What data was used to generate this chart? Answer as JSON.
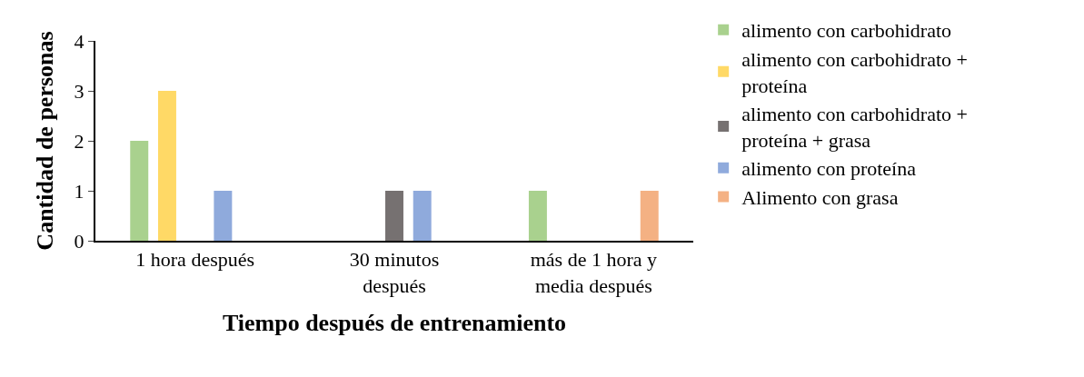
{
  "chart_data": {
    "type": "bar",
    "xlabel": "Tiempo después de entrenamiento",
    "ylabel": "Cantidad de personas",
    "categories": [
      "1 hora después",
      "30 minutos después",
      "más de 1 hora y media después"
    ],
    "series": [
      {
        "name": "alimento con carbohidrato",
        "color": "#a9d18e",
        "values": [
          2,
          0,
          1
        ]
      },
      {
        "name": "alimento con carbohidrato + proteína",
        "color": "#ffd966",
        "values": [
          3,
          0,
          0
        ]
      },
      {
        "name": "alimento con carbohidrato + proteína + grasa",
        "color": "#767171",
        "values": [
          0,
          1,
          0
        ]
      },
      {
        "name": "alimento con proteína",
        "color": "#8faadc",
        "values": [
          1,
          1,
          0
        ]
      },
      {
        "name": "Alimento con grasa",
        "color": "#f4b183",
        "values": [
          0,
          0,
          1
        ]
      }
    ],
    "ylim": [
      0,
      4
    ],
    "yticks": [
      0,
      1,
      2,
      3,
      4
    ],
    "legend": "right"
  }
}
